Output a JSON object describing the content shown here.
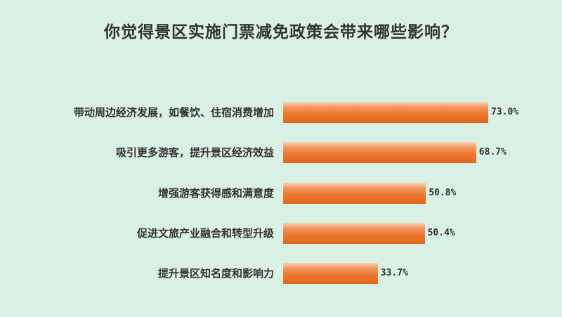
{
  "chart_data": {
    "type": "bar",
    "orientation": "horizontal",
    "title": "你觉得景区实施门票减免政策会带来哪些影响？",
    "categories": [
      "带动周边经济发展，如餐饮、住宿消费增加",
      "吸引更多游客，提升景区经济效益",
      "增强游客获得感和满意度",
      "促进文旅产业融合和转型升级",
      "提升景区知名度和影响力"
    ],
    "values": [
      73.0,
      68.7,
      50.8,
      50.4,
      33.7
    ],
    "value_labels": [
      "73.0%",
      "68.7%",
      "50.8%",
      "50.4%",
      "33.7%"
    ],
    "xlim": [
      0,
      100
    ],
    "grid": false,
    "bar_color": "#ec7a30",
    "background": "#d9f0e5"
  }
}
